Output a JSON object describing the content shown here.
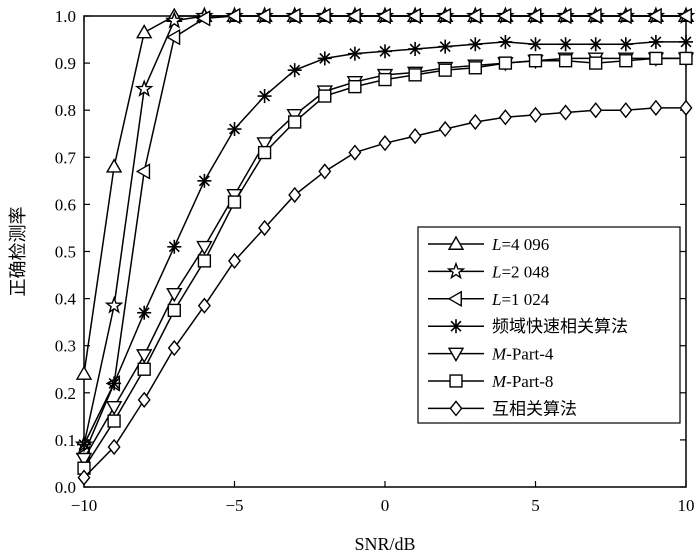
{
  "chart_data": {
    "type": "line",
    "xlabel": "SNR/dB",
    "ylabel": "正确检测率",
    "xlim": [
      -10,
      10
    ],
    "ylim": [
      0,
      1.0
    ],
    "xticks": [
      -10,
      -5,
      0,
      5,
      10
    ],
    "xtick_labels": [
      "−10",
      "−5",
      "0",
      "5",
      "10"
    ],
    "yticks": [
      0.0,
      0.1,
      0.2,
      0.3,
      0.4,
      0.5,
      0.6,
      0.7,
      0.8,
      0.9,
      1.0
    ],
    "ytick_labels": [
      "0.0",
      "0.1",
      "0.2",
      "0.3",
      "0.4",
      "0.5",
      "0.6",
      "0.7",
      "0.8",
      "0.9",
      "1.0"
    ],
    "grid": false,
    "legend_position": "center-right",
    "line_color": "#000000",
    "series": [
      {
        "name": "L=4 096",
        "name_italic": "L",
        "name_rest": "=4 096",
        "marker": "triangle-up",
        "x": [
          -10,
          -9,
          -8,
          -7,
          -6,
          -5,
          -4,
          -3,
          -2,
          -1,
          0,
          1,
          2,
          3,
          4,
          5,
          6,
          7,
          8,
          9,
          10
        ],
        "values": [
          0.24,
          0.68,
          0.965,
          1.0,
          1.0,
          1.0,
          1.0,
          1.0,
          1.0,
          1.0,
          1.0,
          1.0,
          1.0,
          1.0,
          1.0,
          1.0,
          1.0,
          1.0,
          1.0,
          1.0,
          1.0
        ]
      },
      {
        "name": "L=2 048",
        "name_italic": "L",
        "name_rest": "=2 048",
        "marker": "star",
        "x": [
          -10,
          -9,
          -8,
          -7,
          -6,
          -5,
          -4,
          -3,
          -2,
          -1,
          0,
          1,
          2,
          3,
          4,
          5,
          6,
          7,
          8,
          9,
          10
        ],
        "values": [
          0.09,
          0.385,
          0.845,
          0.99,
          1.0,
          1.0,
          1.0,
          1.0,
          1.0,
          1.0,
          1.0,
          1.0,
          1.0,
          1.0,
          1.0,
          1.0,
          1.0,
          1.0,
          1.0,
          1.0,
          1.0
        ]
      },
      {
        "name": "L=1 024",
        "name_italic": "L",
        "name_rest": "=1 024",
        "marker": "triangle-left",
        "x": [
          -10,
          -9,
          -8,
          -7,
          -6,
          -5,
          -4,
          -3,
          -2,
          -1,
          0,
          1,
          2,
          3,
          4,
          5,
          6,
          7,
          8,
          9,
          10
        ],
        "values": [
          0.07,
          0.22,
          0.67,
          0.955,
          0.995,
          1.0,
          1.0,
          1.0,
          1.0,
          1.0,
          1.0,
          1.0,
          1.0,
          1.0,
          1.0,
          1.0,
          1.0,
          1.0,
          1.0,
          1.0,
          1.0
        ]
      },
      {
        "name": "频域快速相关算法",
        "name_italic": "",
        "name_rest": "频域快速相关算法",
        "marker": "asterisk",
        "x": [
          -10,
          -9,
          -8,
          -7,
          -6,
          -5,
          -4,
          -3,
          -2,
          -1,
          0,
          1,
          2,
          3,
          4,
          5,
          6,
          7,
          8,
          9,
          10
        ],
        "values": [
          0.09,
          0.22,
          0.37,
          0.51,
          0.65,
          0.76,
          0.83,
          0.885,
          0.91,
          0.92,
          0.925,
          0.93,
          0.935,
          0.94,
          0.945,
          0.94,
          0.94,
          0.94,
          0.94,
          0.945,
          0.945
        ]
      },
      {
        "name": "M-Part-4",
        "name_italic": "M",
        "name_rest": "-Part-4",
        "marker": "triangle-down",
        "x": [
          -10,
          -9,
          -8,
          -7,
          -6,
          -5,
          -4,
          -3,
          -2,
          -1,
          0,
          1,
          2,
          3,
          4,
          5,
          6,
          7,
          8,
          9,
          10
        ],
        "values": [
          0.06,
          0.17,
          0.28,
          0.41,
          0.51,
          0.62,
          0.73,
          0.79,
          0.84,
          0.86,
          0.875,
          0.88,
          0.89,
          0.895,
          0.9,
          0.905,
          0.91,
          0.91,
          0.91,
          0.91,
          0.91
        ]
      },
      {
        "name": "M-Part-8",
        "name_italic": "M",
        "name_rest": "-Part-8",
        "marker": "square",
        "x": [
          -10,
          -9,
          -8,
          -7,
          -6,
          -5,
          -4,
          -3,
          -2,
          -1,
          0,
          1,
          2,
          3,
          4,
          5,
          6,
          7,
          8,
          9,
          10
        ],
        "values": [
          0.04,
          0.14,
          0.25,
          0.375,
          0.48,
          0.605,
          0.71,
          0.775,
          0.83,
          0.85,
          0.865,
          0.875,
          0.885,
          0.89,
          0.9,
          0.905,
          0.905,
          0.9,
          0.905,
          0.91,
          0.91
        ]
      },
      {
        "name": "互相关算法",
        "name_italic": "",
        "name_rest": "互相关算法",
        "marker": "diamond",
        "x": [
          -10,
          -9,
          -8,
          -7,
          -6,
          -5,
          -4,
          -3,
          -2,
          -1,
          0,
          1,
          2,
          3,
          4,
          5,
          6,
          7,
          8,
          9,
          10
        ],
        "values": [
          0.02,
          0.085,
          0.185,
          0.295,
          0.385,
          0.48,
          0.55,
          0.62,
          0.67,
          0.71,
          0.73,
          0.745,
          0.76,
          0.775,
          0.785,
          0.79,
          0.795,
          0.8,
          0.8,
          0.805,
          0.805
        ]
      }
    ]
  }
}
